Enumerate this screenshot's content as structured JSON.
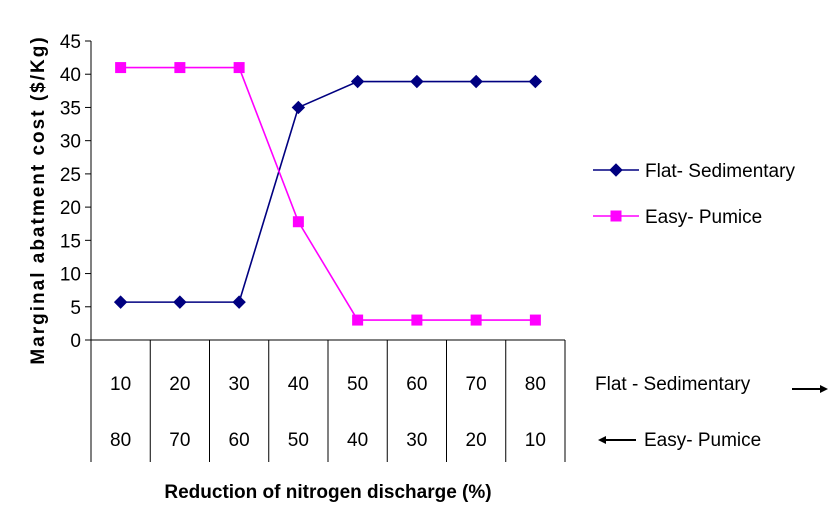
{
  "chart_data": {
    "type": "line",
    "title": "",
    "xlabel": "Reduction of nitrogen discharge (%)",
    "ylabel": "Marginal abatment cost ($/Kg)",
    "ylim": [
      0,
      45
    ],
    "yticks": [
      "0",
      "5",
      "10",
      "15",
      "20",
      "25",
      "30",
      "35",
      "40",
      "45"
    ],
    "grid": false,
    "legend_position": "right",
    "categories": [
      "10",
      "20",
      "30",
      "40",
      "50",
      "60",
      "70",
      "80"
    ],
    "category_rows": [
      {
        "label": "Flat - Sedimentary",
        "direction": "right",
        "values": [
          "10",
          "20",
          "30",
          "40",
          "50",
          "60",
          "70",
          "80"
        ]
      },
      {
        "label": "Easy- Pumice",
        "direction": "left",
        "values": [
          "80",
          "70",
          "60",
          "50",
          "40",
          "30",
          "20",
          "10"
        ]
      }
    ],
    "series": [
      {
        "name": "Flat- Sedimentary",
        "color": "#000080",
        "marker": "diamond",
        "values": [
          5.7,
          5.7,
          5.7,
          35,
          38.9,
          38.9,
          38.9,
          38.9
        ]
      },
      {
        "name": "Easy- Pumice",
        "color": "#ff00ff",
        "marker": "square",
        "values": [
          41,
          41,
          41,
          17.8,
          3,
          3,
          3,
          3
        ]
      }
    ]
  }
}
